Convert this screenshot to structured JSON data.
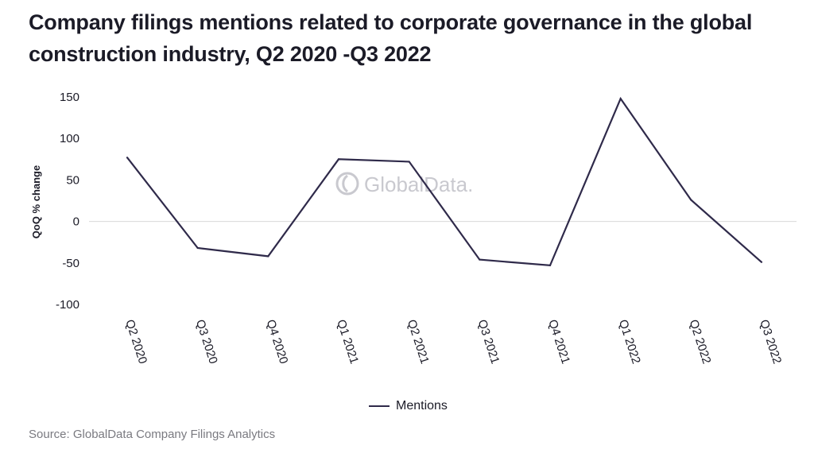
{
  "title": "Company filings mentions related to corporate governance in the global construction industry, Q2 2020 -Q3 2022",
  "source": "Source: GlobalData Company Filings Analytics",
  "watermark": "GlobalData.",
  "colors": {
    "line": "#2f2a4a",
    "zero_line": "#d9d9d9",
    "text": "#1b1b27",
    "watermark": "#c9c9cf"
  },
  "chart_data": {
    "type": "line",
    "title": "Company filings mentions related to corporate governance in the global construction industry, Q2 2020 -Q3 2022",
    "xlabel": "",
    "ylabel": "QoQ % change",
    "ylim": [
      -100,
      150
    ],
    "yticks": [
      150,
      100,
      50,
      0,
      -50,
      -100
    ],
    "categories": [
      "Q2 2020",
      "Q3 2020",
      "Q4 2020",
      "Q1 2021",
      "Q2 2021",
      "Q3 2021",
      "Q4 2021",
      "Q1 2022",
      "Q2 2022",
      "Q3 2022"
    ],
    "series": [
      {
        "name": "Mentions",
        "values": [
          77,
          -32,
          -42,
          75,
          72,
          -46,
          -53,
          148,
          26,
          -49
        ]
      }
    ],
    "grid": false,
    "zero_line": true,
    "legend": "bottom-center"
  }
}
